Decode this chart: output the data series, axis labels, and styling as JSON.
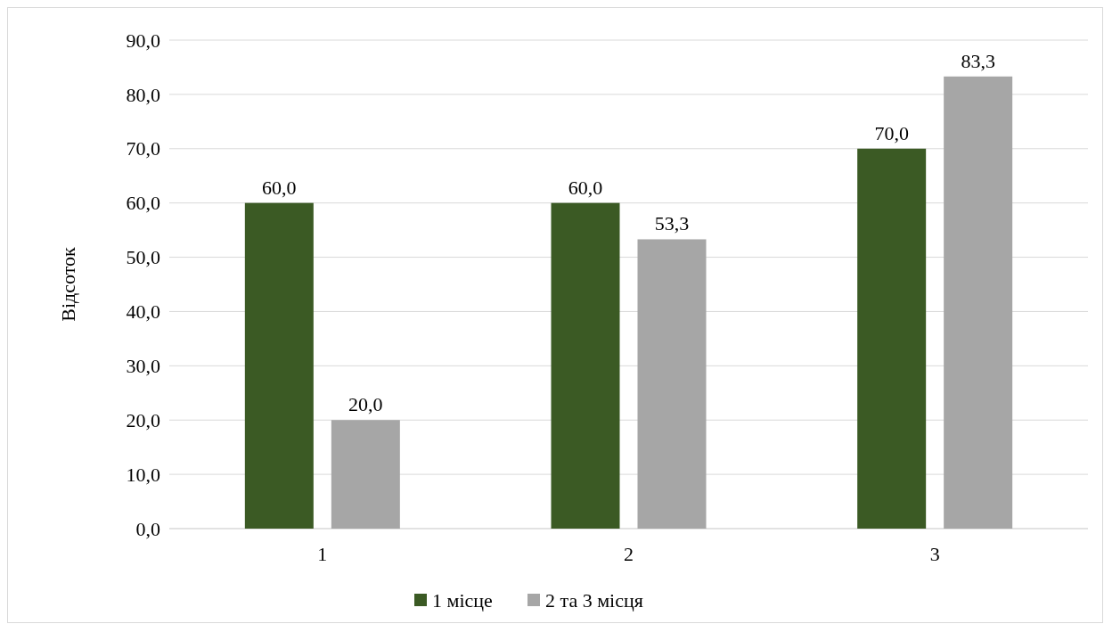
{
  "chart_data": {
    "type": "bar",
    "ylabel": "Відсоток",
    "categories": [
      "1",
      "2",
      "3"
    ],
    "series": [
      {
        "name": "1 місце",
        "color": "#3b5a24",
        "values": [
          60.0,
          60.0,
          70.0
        ],
        "value_labels": [
          "60,0",
          "60,0",
          "70,0"
        ]
      },
      {
        "name": "2 та 3 місця",
        "color": "#a6a6a6",
        "values": [
          20.0,
          53.3,
          83.3
        ],
        "value_labels": [
          "20,0",
          "53,3",
          "83,3"
        ]
      }
    ],
    "ylim": [
      0,
      90
    ],
    "yticks": [
      {
        "value": 0,
        "label": "0,0"
      },
      {
        "value": 10,
        "label": "10,0"
      },
      {
        "value": 20,
        "label": "20,0"
      },
      {
        "value": 30,
        "label": "30,0"
      },
      {
        "value": 40,
        "label": "40,0"
      },
      {
        "value": 50,
        "label": "50,0"
      },
      {
        "value": 60,
        "label": "60,0"
      },
      {
        "value": 70,
        "label": "70,0"
      },
      {
        "value": 80,
        "label": "80,0"
      },
      {
        "value": 90,
        "label": "90,0"
      }
    ],
    "grid": "y",
    "legend": "bottom"
  }
}
